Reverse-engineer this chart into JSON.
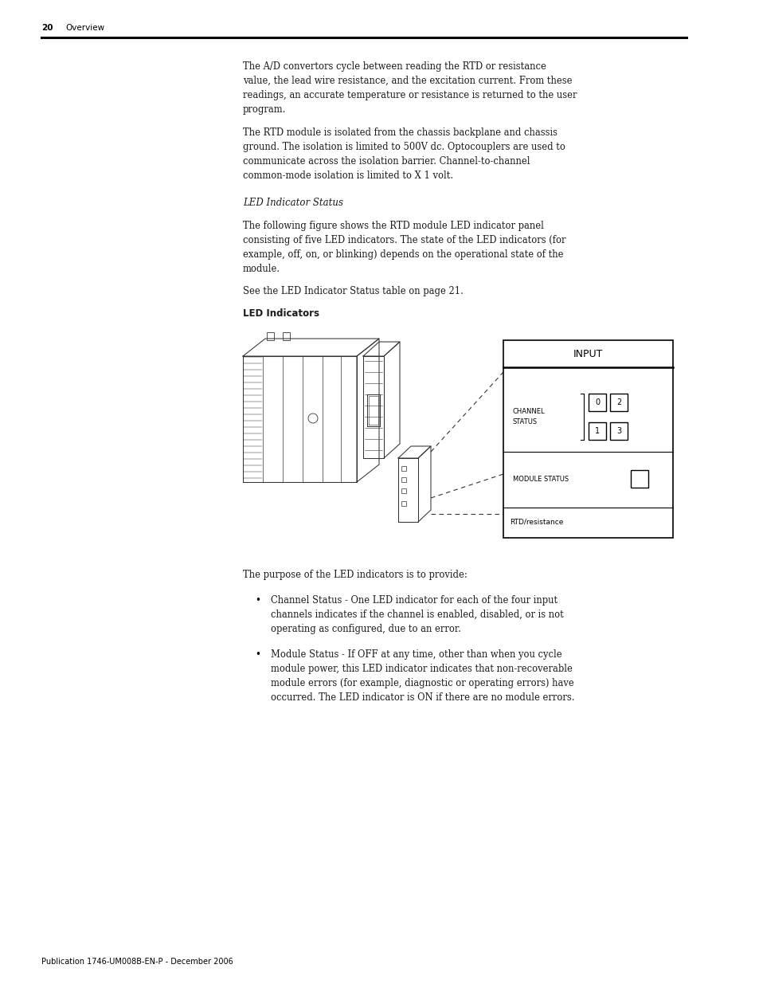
{
  "page_number": "20",
  "page_header": "Overview",
  "footer_text": "Publication 1746-UM008B-EN-P - December 2006",
  "background_color": "#ffffff",
  "text_color": "#1a1a1a",
  "header_line_color": "#000000",
  "para1": "The A/D convertors cycle between reading the RTD or resistance\nvalue, the lead wire resistance, and the excitation current. From these\nreadings, an accurate temperature or resistance is returned to the user\nprogram.",
  "para2": "The RTD module is isolated from the chassis backplane and chassis\nground. The isolation is limited to 500V dc. Optocouplers are used to\ncommunicate across the isolation barrier. Channel-to-channel\ncommon-mode isolation is limited to X 1 volt.",
  "italic_heading": "LED Indicator Status",
  "para3": "The following figure shows the RTD module LED indicator panel\nconsisting of five LED indicators. The state of the LED indicators (for\nexample, off, on, or blinking) depends on the operational state of the\nmodule.",
  "see_text": "See the LED Indicator Status table on page 21.",
  "bold_label": "LED Indicators",
  "purpose_text": "The purpose of the LED indicators is to provide:",
  "bullet1_text": "Channel Status - One LED indicator for each of the four input\nchannels indicates if the channel is enabled, disabled, or is not\noperating as configured, due to an error.",
  "bullet2_text": "Module Status - If OFF at any time, other than when you cycle\nmodule power, this LED indicator indicates that non-recoverable\nmodule errors (for example, diagnostic or operating errors) have\noccurred. The LED indicator is ON if there are no module errors.",
  "figure_box_title": "INPUT",
  "figure_channel_label": "CHANNEL\nSTATUS",
  "figure_module_label": "MODULE STATUS",
  "figure_bottom_label": "RTD/resistance",
  "figure_led_numbers": [
    "0",
    "2",
    "1",
    "3"
  ]
}
